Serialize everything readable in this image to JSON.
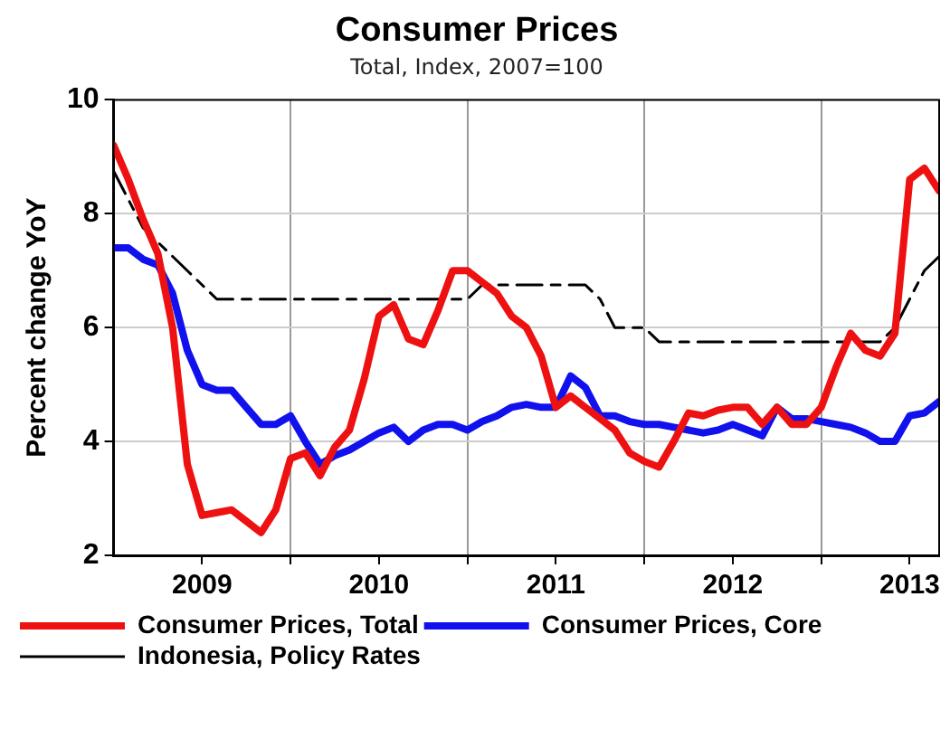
{
  "chart_data": {
    "type": "line",
    "title": "Consumer Prices",
    "subtitle": "Total, Index, 2007=100",
    "ylabel": "Percent change YoY",
    "x": [
      "2009-01",
      "2009-02",
      "2009-03",
      "2009-04",
      "2009-05",
      "2009-06",
      "2009-07",
      "2009-08",
      "2009-09",
      "2009-10",
      "2009-11",
      "2009-12",
      "2010-01",
      "2010-02",
      "2010-03",
      "2010-04",
      "2010-05",
      "2010-06",
      "2010-07",
      "2010-08",
      "2010-09",
      "2010-10",
      "2010-11",
      "2010-12",
      "2011-01",
      "2011-02",
      "2011-03",
      "2011-04",
      "2011-05",
      "2011-06",
      "2011-07",
      "2011-08",
      "2011-09",
      "2011-10",
      "2011-11",
      "2011-12",
      "2012-01",
      "2012-02",
      "2012-03",
      "2012-04",
      "2012-05",
      "2012-06",
      "2012-07",
      "2012-08",
      "2012-09",
      "2012-10",
      "2012-11",
      "2012-12",
      "2013-01",
      "2013-02",
      "2013-03",
      "2013-04",
      "2013-05",
      "2013-06",
      "2013-07",
      "2013-08",
      "2013-09"
    ],
    "series": [
      {
        "name": "Consumer Prices, Total",
        "color": "#ee1111",
        "line_style": "solid",
        "values": [
          9.2,
          8.6,
          7.9,
          7.3,
          6.0,
          3.6,
          2.7,
          2.75,
          2.8,
          2.6,
          2.4,
          2.8,
          3.7,
          3.8,
          3.4,
          3.9,
          4.2,
          5.1,
          6.2,
          6.4,
          5.8,
          5.7,
          6.3,
          7.0,
          7.0,
          6.8,
          6.6,
          6.2,
          6.0,
          5.5,
          4.6,
          4.8,
          4.6,
          4.4,
          4.2,
          3.8,
          3.65,
          3.55,
          4.0,
          4.5,
          4.45,
          4.55,
          4.6,
          4.6,
          4.3,
          4.6,
          4.3,
          4.3,
          4.6,
          5.3,
          5.9,
          5.6,
          5.5,
          5.9,
          8.6,
          8.8,
          8.4
        ]
      },
      {
        "name": "Consumer Prices, Core",
        "color": "#1111ee",
        "line_style": "solid",
        "values": [
          7.4,
          7.4,
          7.2,
          7.1,
          6.6,
          5.6,
          5.0,
          4.9,
          4.9,
          4.6,
          4.3,
          4.3,
          4.45,
          4.0,
          3.6,
          3.75,
          3.85,
          4.0,
          4.15,
          4.25,
          4.0,
          4.2,
          4.3,
          4.3,
          4.2,
          4.35,
          4.45,
          4.6,
          4.65,
          4.6,
          4.6,
          5.15,
          4.95,
          4.45,
          4.45,
          4.35,
          4.3,
          4.3,
          4.25,
          4.2,
          4.15,
          4.2,
          4.3,
          4.2,
          4.1,
          4.6,
          4.4,
          4.4,
          4.35,
          4.3,
          4.25,
          4.15,
          4.0,
          4.0,
          4.45,
          4.5,
          4.7
        ]
      },
      {
        "name": "Indonesia, Policy Rates",
        "color": "#000000",
        "line_style": "dashed",
        "values": [
          8.75,
          8.25,
          7.75,
          7.5,
          7.25,
          7.0,
          6.75,
          6.5,
          6.5,
          6.5,
          6.5,
          6.5,
          6.5,
          6.5,
          6.5,
          6.5,
          6.5,
          6.5,
          6.5,
          6.5,
          6.5,
          6.5,
          6.5,
          6.5,
          6.5,
          6.75,
          6.75,
          6.75,
          6.75,
          6.75,
          6.75,
          6.75,
          6.75,
          6.5,
          6.0,
          6.0,
          6.0,
          5.75,
          5.75,
          5.75,
          5.75,
          5.75,
          5.75,
          5.75,
          5.75,
          5.75,
          5.75,
          5.75,
          5.75,
          5.75,
          5.75,
          5.75,
          5.75,
          6.0,
          6.5,
          7.0,
          7.25
        ]
      }
    ],
    "xlim": [
      "2009-01",
      "2013-09"
    ],
    "xticks": [
      {
        "value": "2009-07",
        "label": "2009"
      },
      {
        "value": "2010-01",
        "label": null
      },
      {
        "value": "2010-07",
        "label": "2010"
      },
      {
        "value": "2011-01",
        "label": null
      },
      {
        "value": "2011-07",
        "label": "2011"
      },
      {
        "value": "2012-01",
        "label": null
      },
      {
        "value": "2012-07",
        "label": "2012"
      },
      {
        "value": "2013-01",
        "label": null
      },
      {
        "value": "2013-07",
        "label": "2013"
      }
    ],
    "ylim": [
      2,
      10
    ],
    "yticks": [
      2,
      4,
      6,
      8,
      10
    ],
    "grid": true,
    "legend": "bottom left",
    "marker": "none"
  }
}
